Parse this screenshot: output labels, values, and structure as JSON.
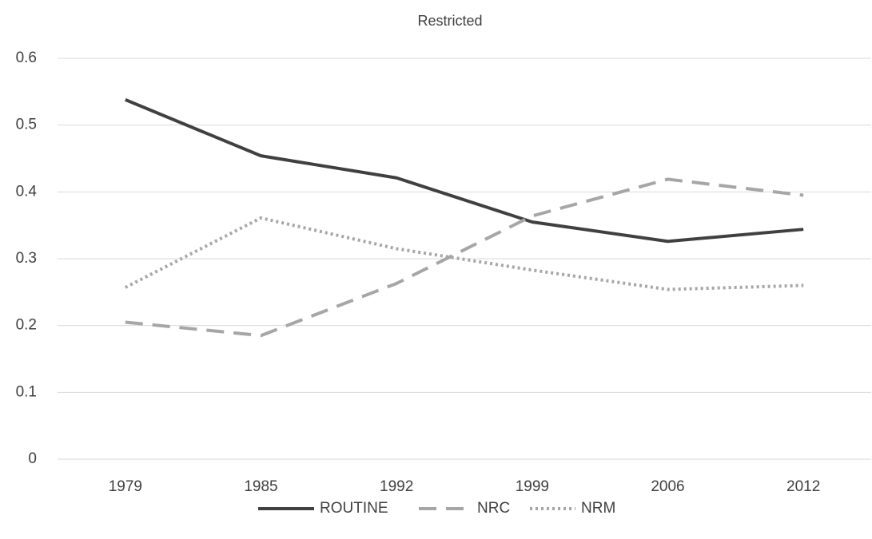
{
  "chart_data": {
    "type": "line",
    "title": "Restricted",
    "categories": [
      "1979",
      "1985",
      "1992",
      "1999",
      "2006",
      "2012"
    ],
    "series": [
      {
        "name": "ROUTINE",
        "color": "#404040",
        "dash": "solid",
        "values": [
          0.538,
          0.454,
          0.421,
          0.355,
          0.326,
          0.344
        ]
      },
      {
        "name": "NRC",
        "color": "#a6a6a6",
        "dash": "dashed",
        "values": [
          0.205,
          0.185,
          0.263,
          0.364,
          0.419,
          0.395
        ]
      },
      {
        "name": "NRM",
        "color": "#a6a6a6",
        "dash": "dotted",
        "values": [
          0.257,
          0.361,
          0.315,
          0.283,
          0.254,
          0.26
        ]
      }
    ],
    "ylim": [
      0,
      0.6
    ],
    "yticks": [
      0,
      0.1,
      0.2,
      0.3,
      0.4,
      0.5,
      0.6
    ],
    "grid": true,
    "legend": "bottom"
  }
}
